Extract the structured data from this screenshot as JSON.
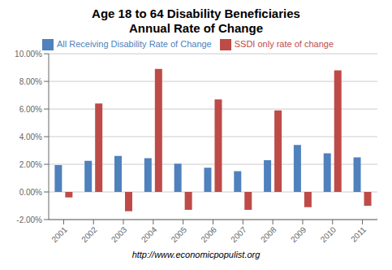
{
  "chart_data": {
    "type": "bar",
    "title": "Age 18 to 64 Disability Beneficiaries",
    "subtitle": "Annual Rate of Change",
    "categories": [
      "2001",
      "2002",
      "2003",
      "2004",
      "2005",
      "2006",
      "2007",
      "2008",
      "2009",
      "2010",
      "2011"
    ],
    "series": [
      {
        "name": "All Receiving Disability  Rate of Change",
        "color": "#4F81BD",
        "values": [
          0.0195,
          0.0225,
          0.026,
          0.0245,
          0.0205,
          0.0175,
          0.015,
          0.023,
          0.034,
          0.028,
          0.025
        ]
      },
      {
        "name": "SSDI only rate of change",
        "color": "#BE4B48",
        "values": [
          -0.004,
          0.064,
          -0.014,
          0.089,
          -0.013,
          0.067,
          -0.013,
          0.059,
          -0.011,
          0.088,
          -0.01
        ]
      }
    ],
    "ylim": [
      -0.02,
      0.1
    ],
    "yticks": [
      {
        "value": -0.02,
        "label": "-2.00%"
      },
      {
        "value": 0.0,
        "label": "0.00%"
      },
      {
        "value": 0.02,
        "label": "2.00%"
      },
      {
        "value": 0.04,
        "label": "4.00%"
      },
      {
        "value": 0.06,
        "label": "6.00%"
      },
      {
        "value": 0.08,
        "label": "8.00%"
      },
      {
        "value": 0.1,
        "label": "10.00%"
      }
    ],
    "grid": true,
    "legend": "top",
    "annotations": [
      "http://www.economicpopulist.org"
    ]
  }
}
